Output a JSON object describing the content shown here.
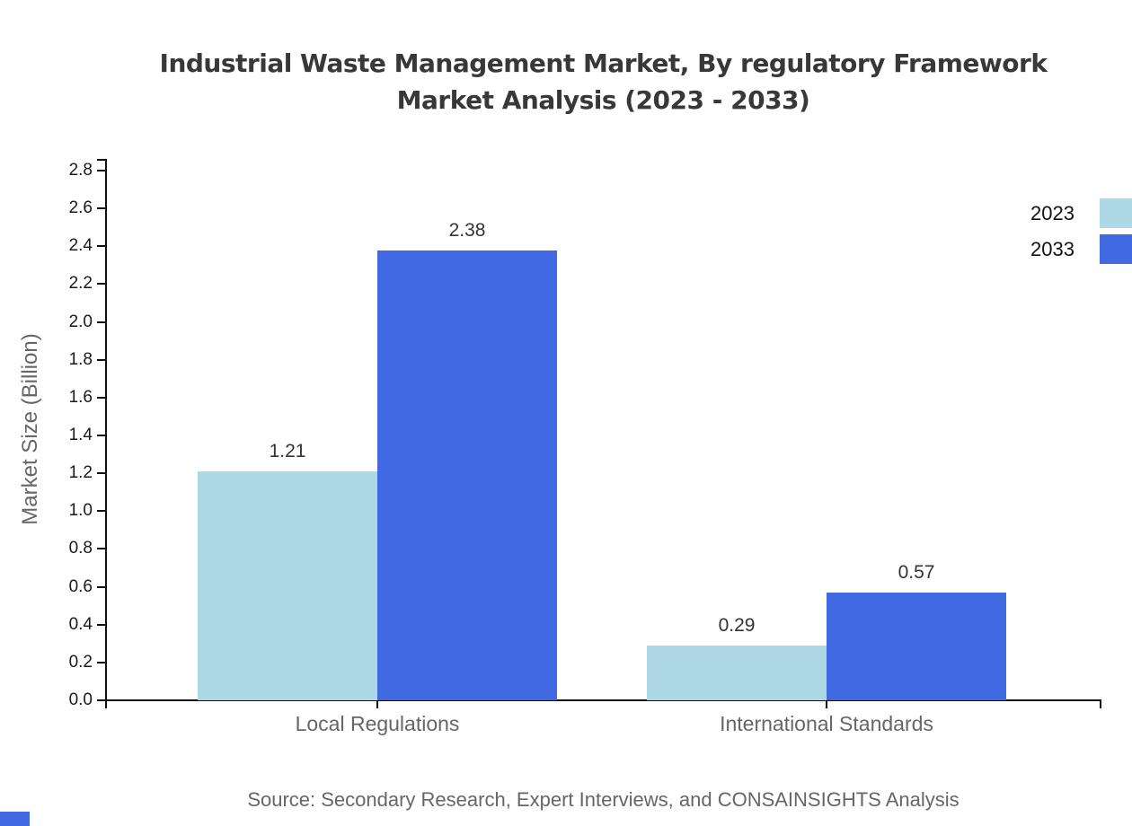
{
  "title": {
    "line1": "Industrial Waste Management Market, By regulatory Framework",
    "line2": "Market Analysis (2023 - 2033)"
  },
  "source_note": "Source: Secondary Research, Expert Interviews, and CONSAINSIGHTS Analysis",
  "chart_data": {
    "type": "bar",
    "title": "Industrial Waste Management Market, By regulatory Framework Market Analysis (2023 - 2033)",
    "categories": [
      "Local Regulations",
      "International Standards"
    ],
    "series": [
      {
        "name": "2023",
        "color": "#add8e6",
        "values": [
          1.21,
          0.29
        ]
      },
      {
        "name": "2033",
        "color": "#4169e1",
        "values": [
          2.38,
          0.57
        ]
      }
    ],
    "xlabel": "",
    "ylabel": "Market Size (Billion)",
    "ylim": [
      0,
      2.86
    ],
    "ytick_labels": [
      "0.0",
      "0.2",
      "0.4",
      "0.6",
      "0.8",
      "1.0",
      "1.2",
      "1.4",
      "1.6",
      "1.8",
      "2.0",
      "2.2",
      "2.4",
      "2.6",
      "2.8"
    ],
    "value_labels": [
      "1.21",
      "2.38",
      "0.29",
      "0.57"
    ],
    "grid": false,
    "legend_position": "top-right"
  },
  "colors": {
    "axis": "#111111",
    "tick_label": "#1a1a1a",
    "value_label": "#333333",
    "muted_text": "#666666",
    "title_text": "#383838",
    "series_2023": "#add8e6",
    "series_2033": "#4169e1",
    "brand_mark": "#4169e1"
  }
}
